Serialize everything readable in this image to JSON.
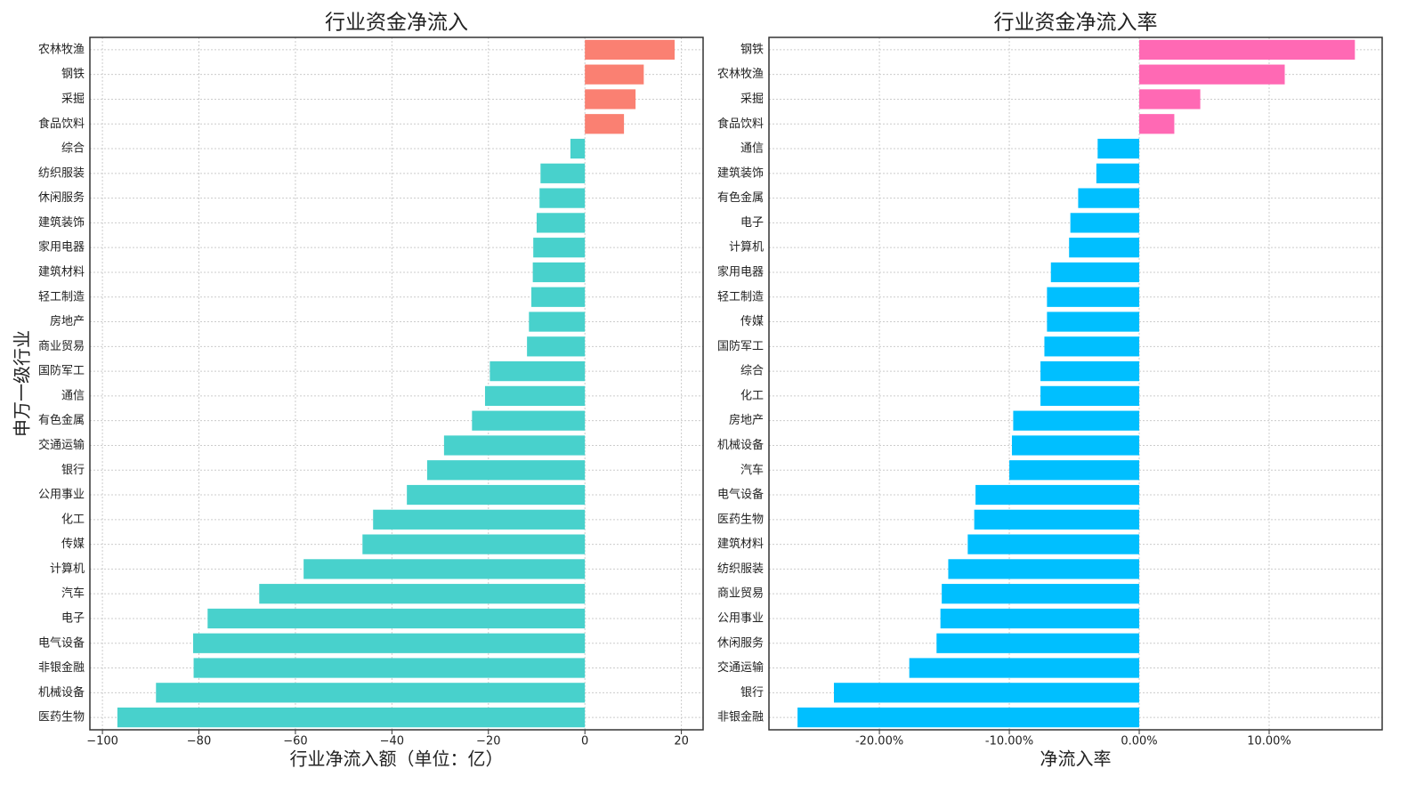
{
  "chart_data": [
    {
      "type": "barh",
      "title": "行业资金净流入",
      "xlabel": "行业净流入额（单位：亿）",
      "ylabel": "申万一级行业",
      "categories": [
        "农林牧渔",
        "钢铁",
        "采掘",
        "食品饮料",
        "综合",
        "纺织服装",
        "休闲服务",
        "建筑装饰",
        "家用电器",
        "建筑材料",
        "轻工制造",
        "房地产",
        "商业贸易",
        "国防军工",
        "通信",
        "有色金属",
        "交通运输",
        "银行",
        "公用事业",
        "化工",
        "传媒",
        "计算机",
        "汽车",
        "电子",
        "电气设备",
        "非银金融",
        "机械设备",
        "医药生物"
      ],
      "values": [
        18.6,
        12.2,
        10.5,
        8.1,
        -3.0,
        -9.2,
        -9.4,
        -10.0,
        -10.7,
        -10.8,
        -11.1,
        -11.6,
        -12.0,
        -19.7,
        -20.7,
        -23.4,
        -29.2,
        -32.7,
        -36.9,
        -43.9,
        -46.1,
        -58.3,
        -67.5,
        -78.2,
        -81.2,
        -81.1,
        -88.9,
        -96.9
      ],
      "positive_color": "#fa8072",
      "negative_color": "#48d1cc",
      "xlim": [
        -102.6,
        24.5
      ],
      "xticks": [
        {
          "value": -100,
          "label": "−100"
        },
        {
          "value": -80,
          "label": "−80"
        },
        {
          "value": -60,
          "label": "−60"
        },
        {
          "value": -40,
          "label": "−40"
        },
        {
          "value": -20,
          "label": "−20"
        },
        0,
        20
      ],
      "grid": true
    },
    {
      "type": "barh",
      "title": "行业资金净流入率",
      "xlabel": "净流入率",
      "categories": [
        "钢铁",
        "农林牧渔",
        "采掘",
        "食品饮料",
        "通信",
        "建筑装饰",
        "有色金属",
        "电子",
        "计算机",
        "家用电器",
        "轻工制造",
        "传媒",
        "国防军工",
        "综合",
        "化工",
        "房地产",
        "机械设备",
        "汽车",
        "电气设备",
        "医药生物",
        "建筑材料",
        "纺织服装",
        "商业贸易",
        "公用事业",
        "休闲服务",
        "交通运输",
        "银行",
        "非银金融"
      ],
      "values": [
        16.6,
        11.2,
        4.7,
        2.7,
        -3.2,
        -3.3,
        -4.7,
        -5.3,
        -5.4,
        -6.8,
        -7.1,
        -7.1,
        -7.3,
        -7.6,
        -7.6,
        -9.7,
        -9.8,
        -10.0,
        -12.6,
        -12.7,
        -13.2,
        -14.7,
        -15.2,
        -15.3,
        -15.6,
        -17.7,
        -23.5,
        -26.3
      ],
      "positive_color": "#ff69b4",
      "negative_color": "#00bfff",
      "xlim": [
        -28.5,
        18.7
      ],
      "xticks": [
        {
          "value": -20,
          "label": "-20.00%"
        },
        {
          "value": -10,
          "label": "-10.00%"
        },
        {
          "value": 0,
          "label": "0.00%"
        },
        {
          "value": 10,
          "label": "10.00%"
        }
      ],
      "grid": true
    }
  ]
}
